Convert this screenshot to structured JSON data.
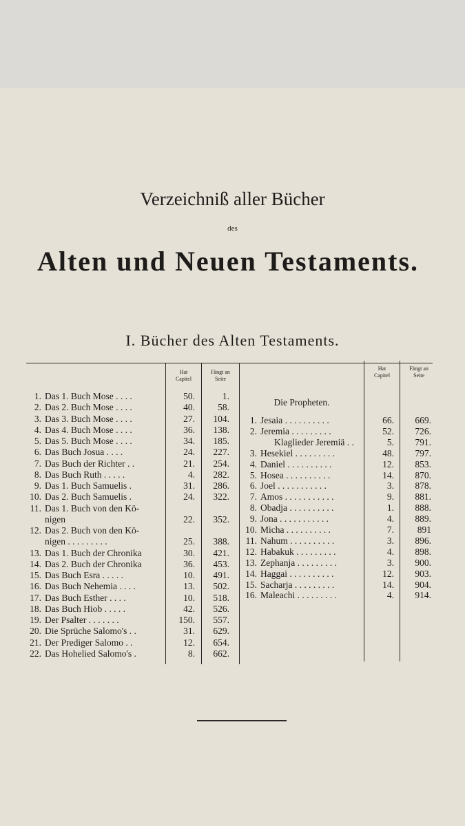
{
  "title": {
    "line1": "Verzeichniß aller Bücher",
    "line2": "des",
    "line3": "Alten und Neuen Testaments."
  },
  "section": "I. Bücher des Alten Testaments.",
  "left": {
    "headers": [
      [
        "Hat",
        "Capitel"
      ],
      [
        "Fängt an",
        "Seite"
      ]
    ],
    "rows": [
      {
        "num": "1.",
        "lines": [
          "Das 1. Buch Mose . . . ."
        ],
        "chapters": "50.",
        "page": "1."
      },
      {
        "num": "2.",
        "lines": [
          "Das 2. Buch Mose . . . ."
        ],
        "chapters": "40.",
        "page": "58."
      },
      {
        "num": "3.",
        "lines": [
          "Das 3. Buch Mose . . . ."
        ],
        "chapters": "27.",
        "page": "104."
      },
      {
        "num": "4.",
        "lines": [
          "Das 4. Buch Mose . . . ."
        ],
        "chapters": "36.",
        "page": "138."
      },
      {
        "num": "5.",
        "lines": [
          "Das 5. Buch Mose . . . ."
        ],
        "chapters": "34.",
        "page": "185."
      },
      {
        "num": "6.",
        "lines": [
          "Das Buch Josua . . . ."
        ],
        "chapters": "24.",
        "page": "227."
      },
      {
        "num": "7.",
        "lines": [
          "Das Buch der Richter . ."
        ],
        "chapters": "21.",
        "page": "254."
      },
      {
        "num": "8.",
        "lines": [
          "Das Buch Ruth . . . . ."
        ],
        "chapters": "4.",
        "page": "282."
      },
      {
        "num": "9.",
        "lines": [
          "Das 1. Buch Samuelis ."
        ],
        "chapters": "31.",
        "page": "286."
      },
      {
        "num": "10.",
        "lines": [
          "Das 2. Buch Samuelis ."
        ],
        "chapters": "24.",
        "page": "322."
      },
      {
        "num": "11.",
        "lines": [
          "Das 1. Buch von den Kö-",
          "nigen"
        ],
        "chapters": "22.",
        "page": "352."
      },
      {
        "num": "12.",
        "lines": [
          "Das 2. Buch von den Kö-",
          "nigen . . . . . . . . ."
        ],
        "chapters": "25.",
        "page": "388."
      },
      {
        "num": "13.",
        "lines": [
          "Das 1. Buch der Chronika"
        ],
        "chapters": "30.",
        "page": "421."
      },
      {
        "num": "14.",
        "lines": [
          "Das 2. Buch der Chronika"
        ],
        "chapters": "36.",
        "page": "453."
      },
      {
        "num": "15.",
        "lines": [
          "Das Buch Esra . . . . ."
        ],
        "chapters": "10.",
        "page": "491."
      },
      {
        "num": "16.",
        "lines": [
          "Das Buch Nehemia . . . ."
        ],
        "chapters": "13.",
        "page": "502."
      },
      {
        "num": "17.",
        "lines": [
          "Das Buch Esther . . . ."
        ],
        "chapters": "10.",
        "page": "518."
      },
      {
        "num": "18.",
        "lines": [
          "Das Buch Hiob . . . . ."
        ],
        "chapters": "42.",
        "page": "526."
      },
      {
        "num": "19.",
        "lines": [
          "Der Psalter . . . . . . ."
        ],
        "chapters": "150.",
        "page": "557."
      },
      {
        "num": "20.",
        "lines": [
          "Die Sprüche Salomo's . ."
        ],
        "chapters": "31.",
        "page": "629."
      },
      {
        "num": "21.",
        "lines": [
          "Der Prediger Salomo . ."
        ],
        "chapters": "12.",
        "page": "654."
      },
      {
        "num": "22.",
        "lines": [
          "Das Hohelied Salomo's ."
        ],
        "chapters": "8.",
        "page": "662."
      }
    ]
  },
  "right": {
    "headers": [
      [
        "Hat",
        "Capitel"
      ],
      [
        "Fängt an",
        "Seite"
      ]
    ],
    "heading": "Die Propheten.",
    "rows": [
      {
        "num": "1.",
        "name": "Jesaia . . . . . . . . . .",
        "chapters": "66.",
        "page": "669."
      },
      {
        "num": "2.",
        "name": "Jeremia . . . . . . . . .",
        "chapters": "52.",
        "page": "726."
      },
      {
        "num": null,
        "name": "Klaglieder Jeremiä . .",
        "chapters": "5.",
        "page": "791."
      },
      {
        "num": "3.",
        "name": "Hesekiel . . . . . . . . .",
        "chapters": "48.",
        "page": "797."
      },
      {
        "num": "4.",
        "name": "Daniel . . . . . . . . . .",
        "chapters": "12.",
        "page": "853."
      },
      {
        "num": "5.",
        "name": "Hosea . . . . . . . . . .",
        "chapters": "14.",
        "page": "870."
      },
      {
        "num": "6.",
        "name": "Joel . . . . . . . . . . .",
        "chapters": "3.",
        "page": "878."
      },
      {
        "num": "7.",
        "name": "Amos . . . . . . . . . . .",
        "chapters": "9.",
        "page": "881."
      },
      {
        "num": "8.",
        "name": "Obadja . . . . . . . . . .",
        "chapters": "1.",
        "page": "888."
      },
      {
        "num": "9.",
        "name": "Jona . . . . . . . . . . .",
        "chapters": "4.",
        "page": "889."
      },
      {
        "num": "10.",
        "name": "Micha . . . . . . . . . .",
        "chapters": "7.",
        "page": "891"
      },
      {
        "num": "11.",
        "name": "Nahum . . . . . . . . . .",
        "chapters": "3.",
        "page": "896."
      },
      {
        "num": "12.",
        "name": "Habakuk . . . . . . . . .",
        "chapters": "4.",
        "page": "898."
      },
      {
        "num": "13.",
        "name": "Zephanja . . . . . . . . .",
        "chapters": "3.",
        "page": "900."
      },
      {
        "num": "14.",
        "name": "Haggai . . . . . . . . . .",
        "chapters": "12.",
        "page": "903."
      },
      {
        "num": "15.",
        "name": "Sacharja . . . . . . . . .",
        "chapters": "14.",
        "page": "904."
      },
      {
        "num": "16.",
        "name": "Maleachi . . . . . . . . .",
        "chapters": "4.",
        "page": "914."
      }
    ]
  }
}
